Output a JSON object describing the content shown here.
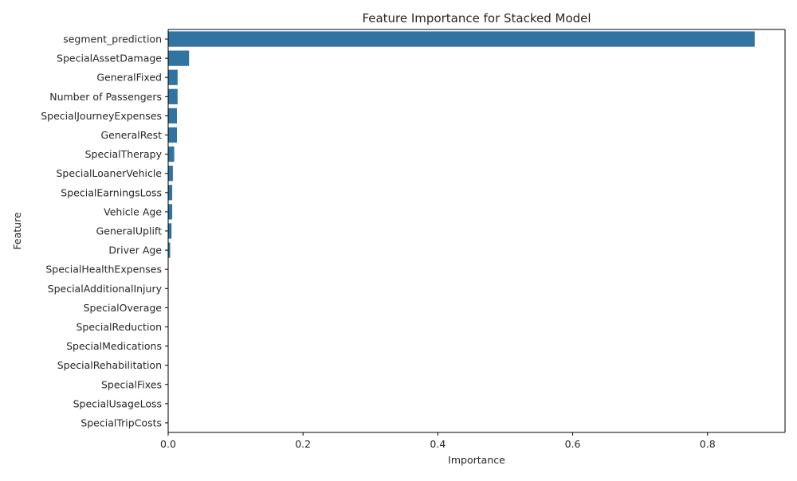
{
  "chart_data": {
    "type": "bar",
    "orientation": "horizontal",
    "title": "Feature Importance for Stacked Model",
    "xlabel": "Importance",
    "ylabel": "Feature",
    "xlim": [
      0,
      0.915
    ],
    "xticks": [
      0.0,
      0.2,
      0.4,
      0.6,
      0.8
    ],
    "xtick_labels": [
      "0.0",
      "0.2",
      "0.4",
      "0.6",
      "0.8"
    ],
    "grid": false,
    "bar_color": "#3274a1",
    "categories": [
      "segment_prediction",
      "SpecialAssetDamage",
      "GeneralFixed",
      "Number of Passengers",
      "SpecialJourneyExpenses",
      "GeneralRest",
      "SpecialTherapy",
      "SpecialLoanerVehicle",
      "SpecialEarningsLoss",
      "Vehicle Age",
      "GeneralUplift",
      "Driver Age",
      "SpecialHealthExpenses",
      "SpecialAdditionalInjury",
      "SpecialOverage",
      "SpecialReduction",
      "SpecialMedications",
      "SpecialRehabilitation",
      "SpecialFixes",
      "SpecialUsageLoss",
      "SpecialTripCosts"
    ],
    "values": [
      0.87,
      0.031,
      0.014,
      0.014,
      0.013,
      0.013,
      0.009,
      0.007,
      0.006,
      0.006,
      0.005,
      0.003,
      0.0,
      0.0,
      0.0,
      0.0,
      0.0,
      0.0,
      0.0,
      0.0,
      0.0
    ]
  }
}
